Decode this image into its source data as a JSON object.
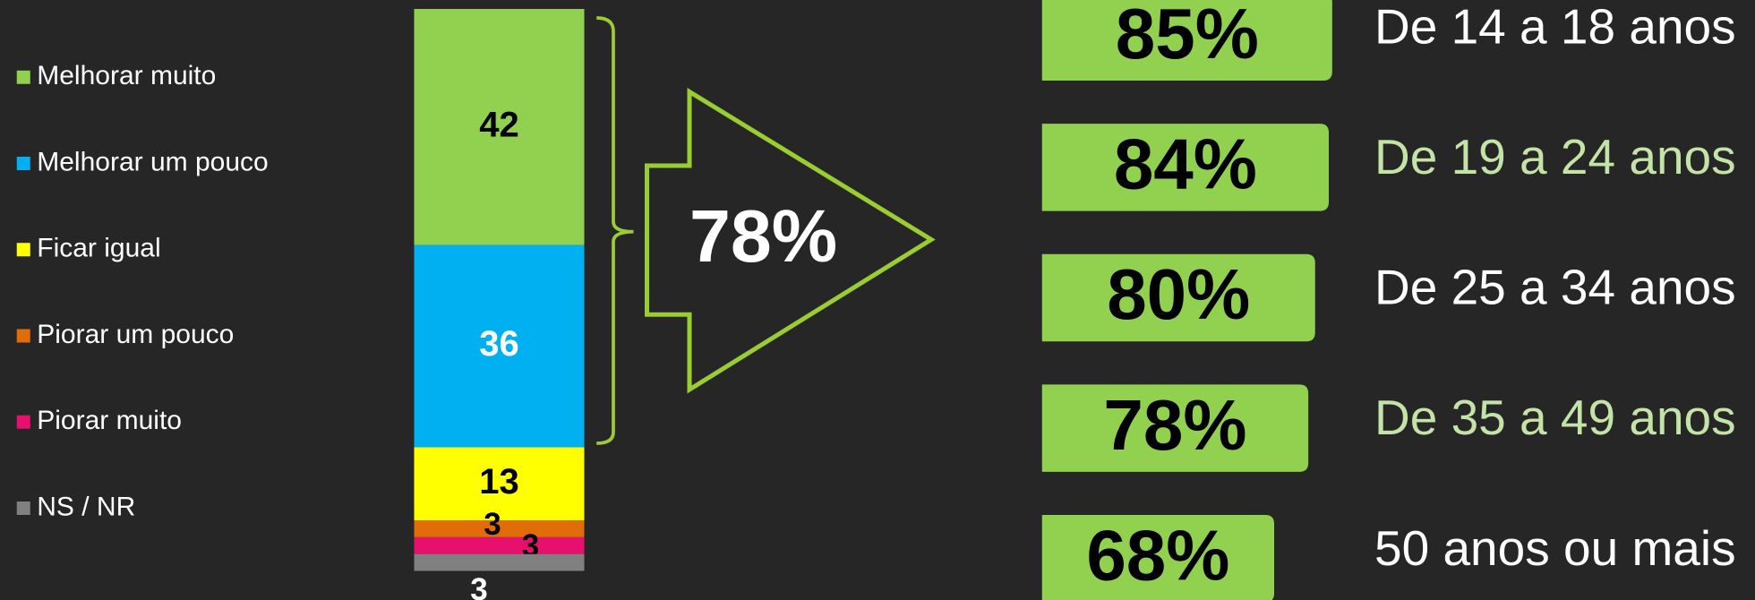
{
  "chart_data": [
    {
      "type": "stacked_bar",
      "series": [
        {
          "name": "Melhorar muito",
          "color": "#92d050",
          "label_color": "#000000",
          "values": [
            42
          ]
        },
        {
          "name": "Melhorar um pouco",
          "color": "#00b0f0",
          "label_color": "#ffffff",
          "values": [
            36
          ]
        },
        {
          "name": "Ficar igual",
          "color": "#ffff00",
          "label_color": "#000000",
          "values": [
            13
          ]
        },
        {
          "name": "Piorar um pouco",
          "color": "#e36c0a",
          "label_color": "#000000",
          "values": [
            3
          ]
        },
        {
          "name": "Piorar muito",
          "color": "#e8106e",
          "label_color": "#000000",
          "values": [
            3
          ]
        },
        {
          "name": "NS / NR",
          "color": "#808080",
          "label_color": "#ffffff",
          "values": [
            3
          ]
        }
      ],
      "annotation": "78%"
    },
    {
      "type": "hbar",
      "categories": [
        "De 14 a 18 anos",
        "De 19 a 24 anos",
        "De 25 a 34 anos",
        "De 35 a 49 anos",
        "50 anos ou mais"
      ],
      "values": [
        85,
        84,
        80,
        78,
        68
      ],
      "value_labels": [
        "85%",
        "84%",
        "80%",
        "78%",
        "68%"
      ],
      "color": "#92d050",
      "label_colors": [
        "#ffffff",
        "#c4e3a6",
        "#ffffff",
        "#c4e3a6",
        "#ffffff"
      ]
    }
  ]
}
